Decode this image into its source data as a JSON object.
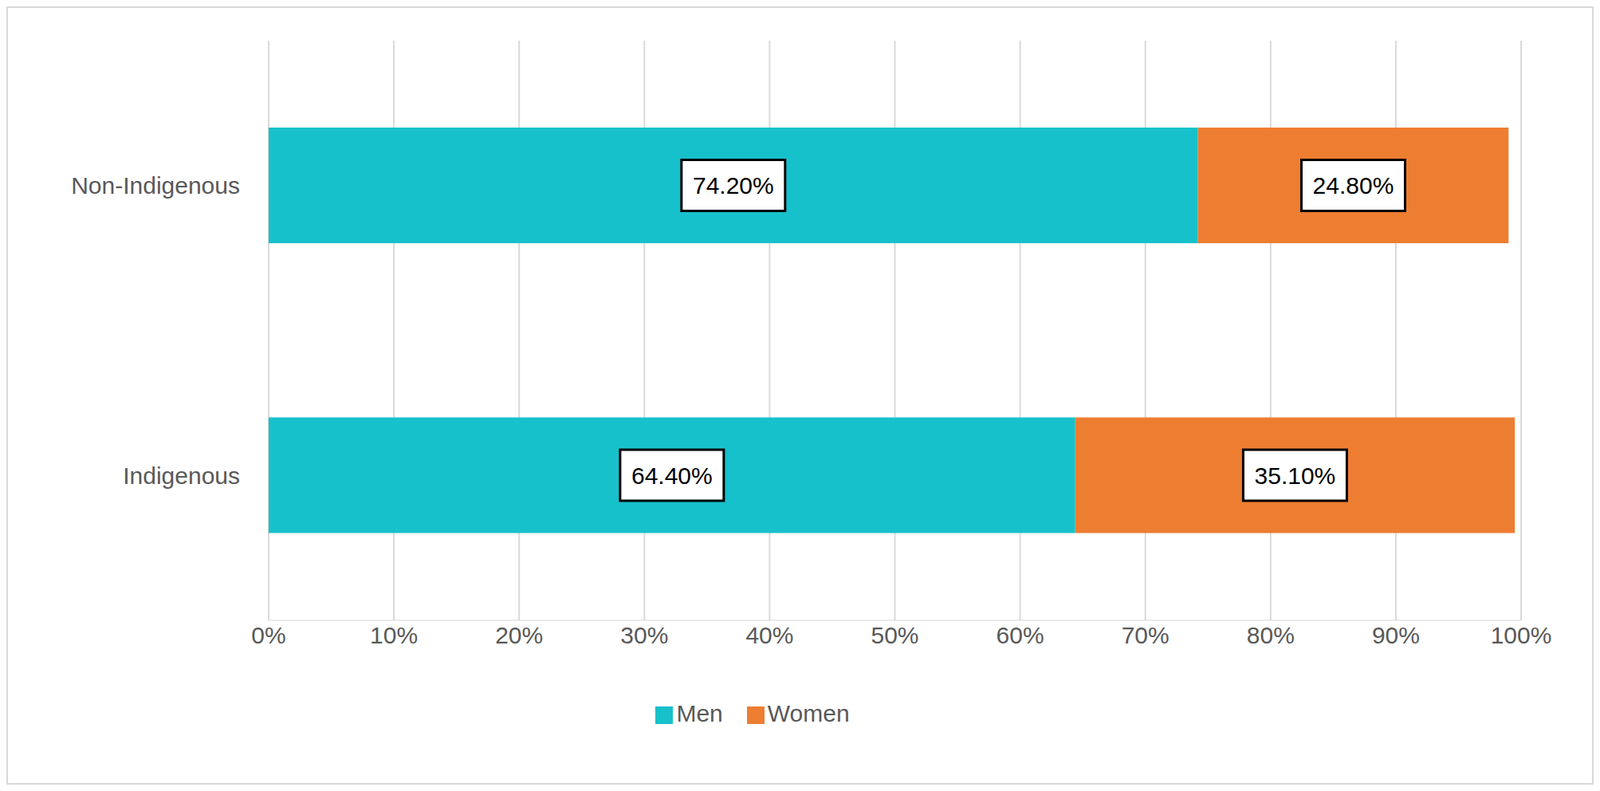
{
  "chart_data": {
    "type": "bar",
    "orientation": "horizontal",
    "stacked": true,
    "categories": [
      "Non-Indigenous",
      "Indigenous"
    ],
    "series": [
      {
        "name": "Men",
        "color": "#17C1CB",
        "values": [
          74.2,
          64.4
        ],
        "value_labels": [
          "74.20%",
          "64.40%"
        ]
      },
      {
        "name": "Women",
        "color": "#ED7D31",
        "values": [
          24.8,
          35.1
        ],
        "value_labels": [
          "24.80%",
          "35.10%"
        ]
      }
    ],
    "xlim": [
      0,
      100
    ],
    "xticks": [
      {
        "value": 0,
        "label": "0%"
      },
      {
        "value": 10,
        "label": "10%"
      },
      {
        "value": 20,
        "label": "20%"
      },
      {
        "value": 30,
        "label": "30%"
      },
      {
        "value": 40,
        "label": "40%"
      },
      {
        "value": 50,
        "label": "50%"
      },
      {
        "value": 60,
        "label": "60%"
      },
      {
        "value": 70,
        "label": "70%"
      },
      {
        "value": 80,
        "label": "80%"
      },
      {
        "value": 90,
        "label": "90%"
      },
      {
        "value": 100,
        "label": "100%"
      }
    ],
    "grid": true,
    "legend": "bottom",
    "data_labels": true
  }
}
